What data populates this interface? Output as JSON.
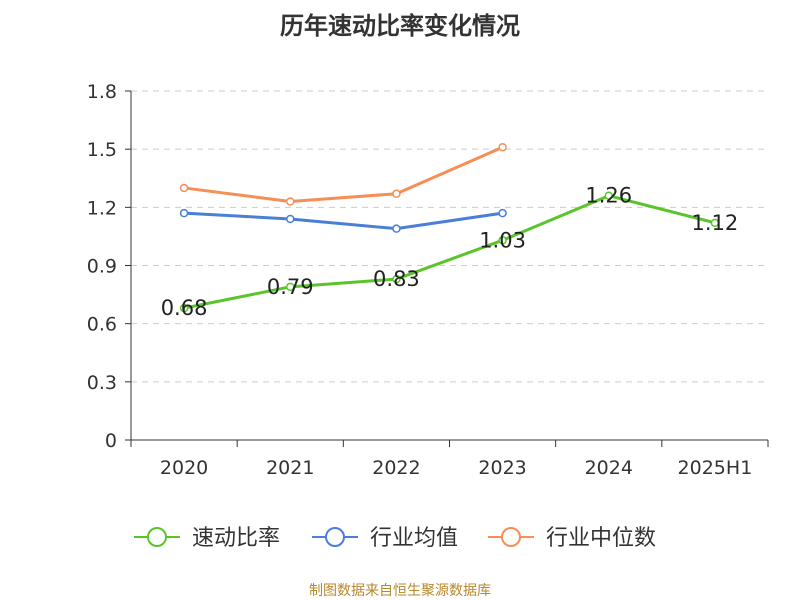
{
  "chart_data": {
    "type": "line",
    "title": "历年速动比率变化情况",
    "categories": [
      "2020",
      "2021",
      "2022",
      "2023",
      "2024",
      "2025H1"
    ],
    "yticks": [
      "0",
      "0.3",
      "0.6",
      "0.9",
      "1.2",
      "1.5",
      "1.8"
    ],
    "ylim": [
      0,
      1.8
    ],
    "grid": true,
    "legend_position": "bottom",
    "series": [
      {
        "name": "速动比率",
        "color": "#5bc42b",
        "values": [
          0.68,
          0.79,
          0.83,
          1.03,
          1.26,
          1.12
        ],
        "labels": [
          "0.68",
          "0.79",
          "0.83",
          "1.03",
          "1.26",
          "1.12"
        ]
      },
      {
        "name": "行业均值",
        "color": "#4a7fd8",
        "values": [
          1.17,
          1.14,
          1.09,
          1.17,
          null,
          null
        ]
      },
      {
        "name": "行业中位数",
        "color": "#f58f57",
        "values": [
          1.3,
          1.23,
          1.27,
          1.51,
          null,
          null
        ]
      }
    ]
  },
  "footer": "制图数据来自恒生聚源数据库"
}
